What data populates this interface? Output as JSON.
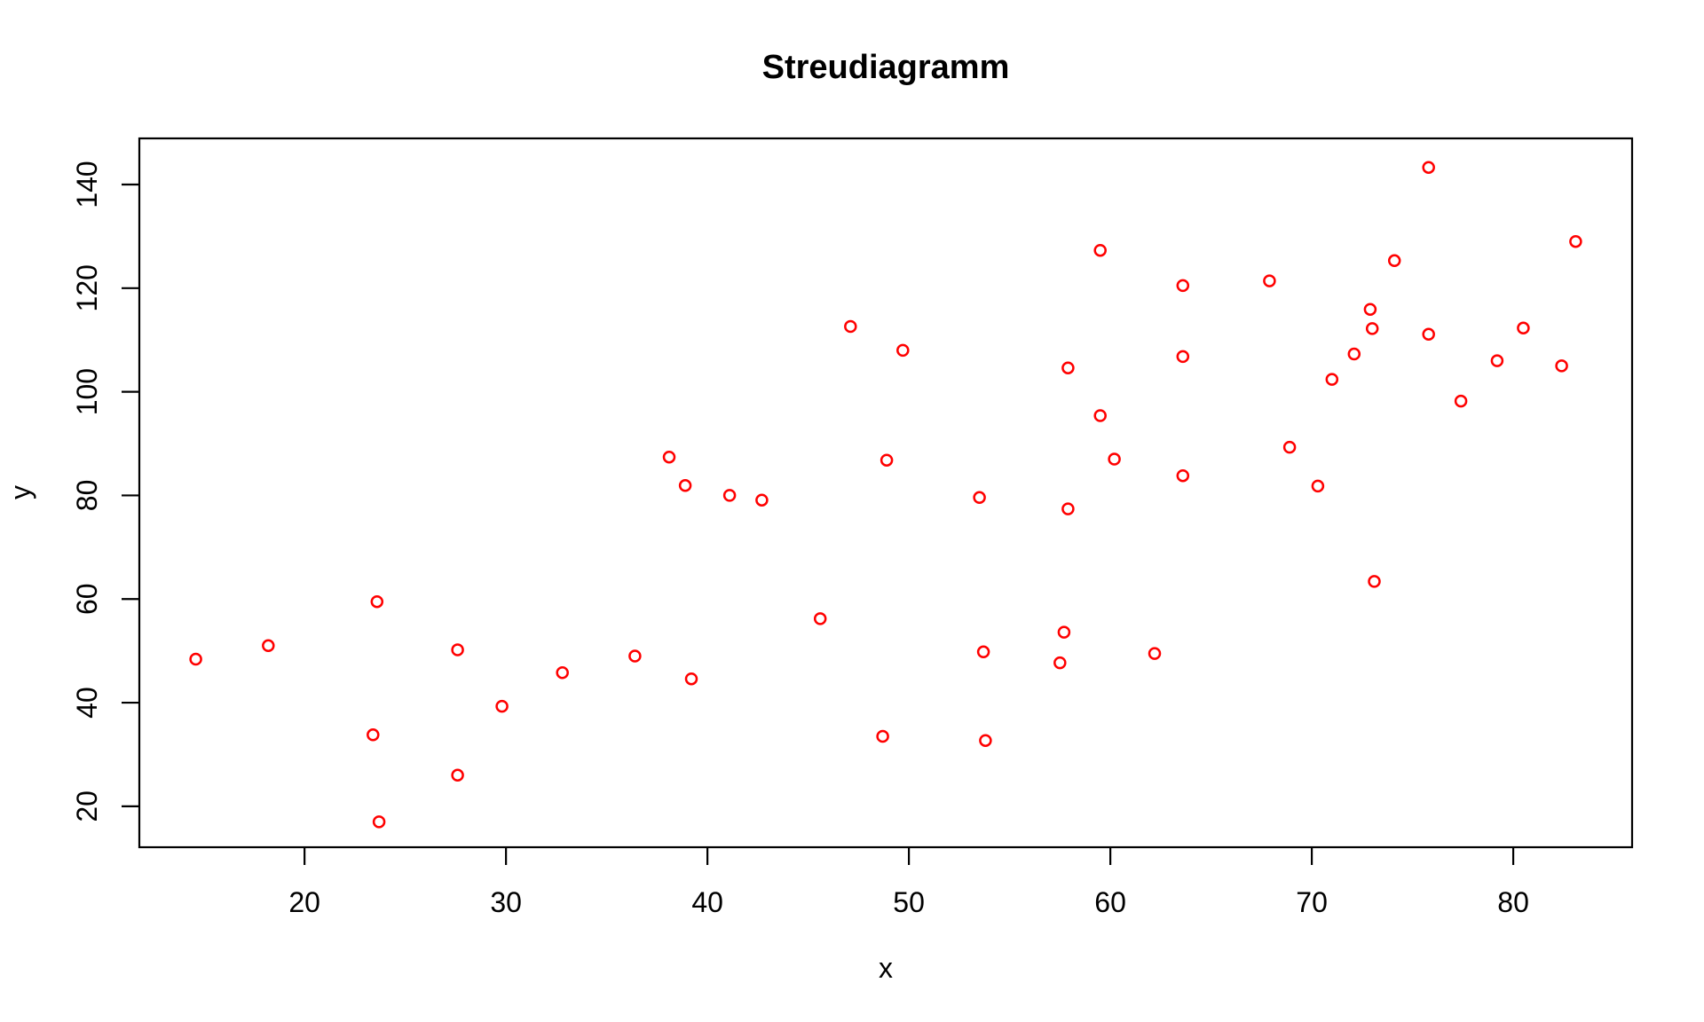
{
  "figure": {
    "background_color": "#FFFFFF",
    "axis_color": "#000000"
  },
  "chart_data": {
    "type": "scatter",
    "title": "Streudiagramm",
    "xlabel": "x",
    "ylabel": "y",
    "xlim": [
      11.8,
      85.9
    ],
    "ylim": [
      12.1,
      148.9
    ],
    "x_ticks": [
      20,
      30,
      40,
      50,
      60,
      70,
      80
    ],
    "y_ticks": [
      20,
      40,
      60,
      80,
      100,
      120,
      140
    ],
    "grid": false,
    "legend": "none",
    "marker": "open-circle",
    "point_color": "#FF0000",
    "frame_color": "#000000",
    "points": [
      [
        14.6,
        48.4
      ],
      [
        18.2,
        51.0
      ],
      [
        23.4,
        33.8
      ],
      [
        23.6,
        59.5
      ],
      [
        23.7,
        17.0
      ],
      [
        27.6,
        26.0
      ],
      [
        27.6,
        50.2
      ],
      [
        29.8,
        39.3
      ],
      [
        32.8,
        45.8
      ],
      [
        36.4,
        49.0
      ],
      [
        38.1,
        87.4
      ],
      [
        38.9,
        81.9
      ],
      [
        39.2,
        44.6
      ],
      [
        41.1,
        80.0
      ],
      [
        42.7,
        79.1
      ],
      [
        45.6,
        56.2
      ],
      [
        47.1,
        112.6
      ],
      [
        48.7,
        33.5
      ],
      [
        48.9,
        86.8
      ],
      [
        49.7,
        108.0
      ],
      [
        53.5,
        79.6
      ],
      [
        53.7,
        49.8
      ],
      [
        53.8,
        32.7
      ],
      [
        57.5,
        47.7
      ],
      [
        57.7,
        53.6
      ],
      [
        57.9,
        77.4
      ],
      [
        57.9,
        104.6
      ],
      [
        59.5,
        95.4
      ],
      [
        59.5,
        127.3
      ],
      [
        60.2,
        87.0
      ],
      [
        62.2,
        49.5
      ],
      [
        63.6,
        83.8
      ],
      [
        63.6,
        106.8
      ],
      [
        63.6,
        120.5
      ],
      [
        67.9,
        121.4
      ],
      [
        68.9,
        89.3
      ],
      [
        70.3,
        81.8
      ],
      [
        71.0,
        102.4
      ],
      [
        72.1,
        107.3
      ],
      [
        72.9,
        115.9
      ],
      [
        73.0,
        112.2
      ],
      [
        73.1,
        63.4
      ],
      [
        74.1,
        125.3
      ],
      [
        75.8,
        111.1
      ],
      [
        75.8,
        143.3
      ],
      [
        77.4,
        98.2
      ],
      [
        79.2,
        106.0
      ],
      [
        80.5,
        112.3
      ],
      [
        82.4,
        105.0
      ],
      [
        83.1,
        129.0
      ]
    ]
  }
}
